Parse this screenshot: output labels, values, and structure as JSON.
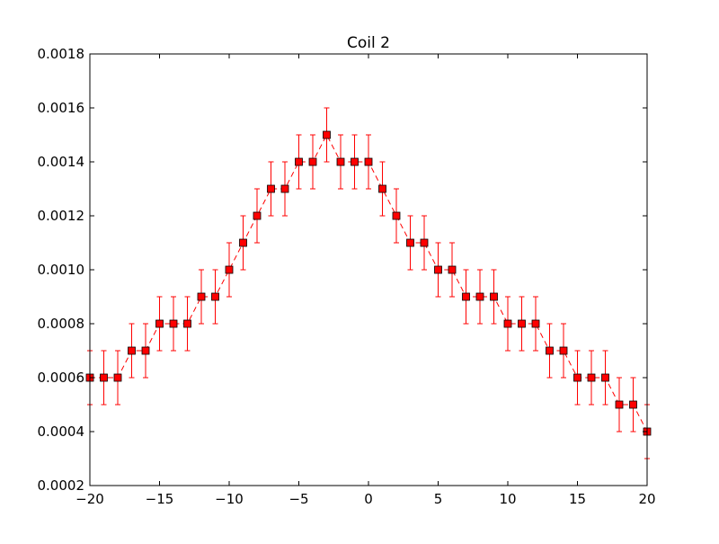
{
  "chart_data": {
    "type": "scatter",
    "title": "Coil 2",
    "xlabel": "",
    "ylabel": "",
    "xlim": [
      -20,
      20
    ],
    "ylim": [
      0.0002,
      0.0018
    ],
    "grid": false,
    "legend": "none",
    "x_ticks": [
      "−20",
      "−15",
      "−10",
      "−5",
      "0",
      "5",
      "10",
      "15",
      "20"
    ],
    "y_ticks": [
      "0.0002",
      "0.0004",
      "0.0006",
      "0.0008",
      "0.0010",
      "0.0012",
      "0.0014",
      "0.0016",
      "0.0018"
    ],
    "series": [
      {
        "color": "#ff0000",
        "line_style": "dashed",
        "marker": "square",
        "x": [
          -20,
          -19,
          -18,
          -17,
          -16,
          -15,
          -14,
          -13,
          -12,
          -11,
          -10,
          -9,
          -8,
          -7,
          -6,
          -5,
          -4,
          -3,
          -2,
          -1,
          0,
          1,
          2,
          3,
          4,
          5,
          6,
          7,
          8,
          9,
          10,
          11,
          12,
          13,
          14,
          15,
          16,
          17,
          18,
          19,
          20
        ],
        "y": [
          0.0006,
          0.0006,
          0.0006,
          0.0007,
          0.0007,
          0.0008,
          0.0008,
          0.0008,
          0.0009,
          0.0009,
          0.001,
          0.0011,
          0.0012,
          0.0013,
          0.0013,
          0.0014,
          0.0014,
          0.0015,
          0.0014,
          0.0014,
          0.0014,
          0.0013,
          0.0012,
          0.0011,
          0.0011,
          0.001,
          0.001,
          0.0009,
          0.0009,
          0.0009,
          0.0008,
          0.0008,
          0.0008,
          0.0007,
          0.0007,
          0.0006,
          0.0006,
          0.0006,
          0.0005,
          0.0005,
          0.0004
        ],
        "yerr": 0.0001
      }
    ]
  }
}
